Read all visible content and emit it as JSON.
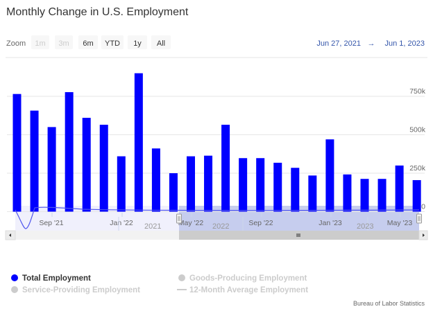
{
  "title": "Monthly Change in U.S. Employment",
  "range_selector": {
    "label": "Zoom",
    "buttons": [
      {
        "label": "1m",
        "enabled": false
      },
      {
        "label": "3m",
        "enabled": false
      },
      {
        "label": "6m",
        "enabled": true
      },
      {
        "label": "YTD",
        "enabled": true
      },
      {
        "label": "1y",
        "enabled": true
      },
      {
        "label": "All",
        "enabled": true
      }
    ],
    "from": "Jun 27, 2021",
    "arrow": "→",
    "to": "Jun 1, 2023"
  },
  "chart_data": {
    "type": "bar",
    "categories": [
      "Jul 2021",
      "Aug 2021",
      "Sep 2021",
      "Oct 2021",
      "Nov 2021",
      "Dec 2021",
      "Jan 2022",
      "Feb 2022",
      "Mar 2022",
      "Apr 2022",
      "May 2022",
      "Jun 2022",
      "Jul 2022",
      "Aug 2022",
      "Sep 2022",
      "Oct 2022",
      "Nov 2022",
      "Dec 2022",
      "Jan 2023",
      "Feb 2023",
      "Mar 2023",
      "Apr 2023",
      "May 2023",
      "Jun 2023"
    ],
    "series": [
      {
        "name": "Total Employment",
        "color": "#0000ff",
        "values": [
          765,
          657,
          550,
          777,
          610,
          565,
          360,
          900,
          411,
          250,
          360,
          364,
          565,
          348,
          348,
          318,
          285,
          235,
          470,
          242,
          213,
          213,
          300,
          205
        ]
      }
    ],
    "unit": "thousands",
    "ylim": [
      0,
      950
    ],
    "yticks": [
      "0",
      "250k",
      "500k",
      "750k"
    ],
    "xticks": [
      "Sep '21",
      "Jan '22",
      "May '22",
      "Sep '22",
      "Jan '23",
      "May '23"
    ],
    "navigator_ticks": [
      "2021",
      "2022",
      "2023"
    ],
    "grid": true,
    "legend_position": "bottom-left"
  },
  "legend": [
    {
      "label": "Total Employment",
      "active": true,
      "color": "#0000ff",
      "symbol": "circle"
    },
    {
      "label": "Goods-Producing Employment",
      "active": false,
      "color": "#cccccc",
      "symbol": "circle"
    },
    {
      "label": "Service-Providing Employment",
      "active": false,
      "color": "#cccccc",
      "symbol": "circle"
    },
    {
      "label": "12-Month Average Employment",
      "active": false,
      "color": "#cccccc",
      "symbol": "line"
    }
  ],
  "credits": "Bureau of Labor Statistics"
}
